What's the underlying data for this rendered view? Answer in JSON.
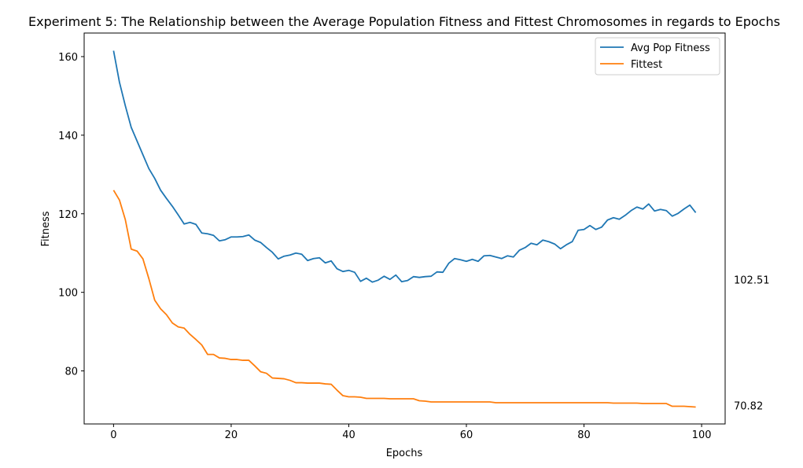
{
  "chart_data": {
    "type": "line",
    "title": "Experiment 5: The Relationship between the Average Population Fitness and Fittest Chromosomes in regards to Epochs",
    "xlabel": "Epochs",
    "ylabel": "Fitness",
    "xlim": [
      -5,
      104
    ],
    "ylim": [
      66.5,
      166
    ],
    "xticks": [
      0,
      20,
      40,
      60,
      80,
      100
    ],
    "yticks": [
      80,
      100,
      120,
      140,
      160
    ],
    "grid": false,
    "legend_position": "top-right",
    "side_annotations": [
      {
        "text": "102.51",
        "y": 103.2
      },
      {
        "text": "70.82",
        "y": 71.2
      }
    ],
    "series": [
      {
        "name": "Avg Pop Fitness",
        "color": "#1f77b4",
        "values": [
          161.5,
          153.5,
          147.5,
          142.0,
          138.5,
          135.0,
          131.5,
          129.0,
          126.0,
          123.9,
          121.9,
          119.7,
          117.4,
          117.8,
          117.3,
          115.1,
          114.9,
          114.5,
          113.1,
          113.4,
          114.1,
          114.1,
          114.2,
          114.6,
          113.3,
          112.7,
          111.4,
          110.2,
          108.5,
          109.2,
          109.5,
          110.0,
          109.7,
          108.1,
          108.6,
          108.8,
          107.5,
          108.0,
          106.0,
          105.3,
          105.6,
          105.1,
          102.8,
          103.6,
          102.6,
          103.1,
          104.1,
          103.3,
          104.4,
          102.7,
          103.0,
          104.0,
          103.8,
          104.0,
          104.1,
          105.2,
          105.1,
          107.4,
          108.6,
          108.3,
          107.9,
          108.4,
          107.9,
          109.3,
          109.4,
          109.0,
          108.6,
          109.3,
          109.0,
          110.7,
          111.4,
          112.5,
          112.1,
          113.3,
          112.9,
          112.3,
          111.1,
          112.1,
          112.9,
          115.8,
          116.0,
          117.0,
          116.0,
          116.6,
          118.4,
          119.0,
          118.6,
          119.6,
          120.8,
          121.7,
          121.2,
          122.5,
          120.7,
          121.1,
          120.8,
          119.4,
          120.1,
          121.2,
          122.2,
          120.3
        ]
      },
      {
        "name": "Fittest",
        "color": "#ff7f0e",
        "values": [
          126.0,
          123.5,
          118.5,
          111.0,
          110.5,
          108.5,
          103.5,
          98.0,
          95.8,
          94.3,
          92.2,
          91.2,
          90.9,
          89.3,
          88.0,
          86.6,
          84.2,
          84.2,
          83.3,
          83.2,
          82.9,
          82.9,
          82.7,
          82.7,
          81.3,
          79.8,
          79.4,
          78.2,
          78.1,
          78.0,
          77.6,
          77.0,
          77.0,
          76.9,
          76.9,
          76.9,
          76.7,
          76.6,
          75.1,
          73.7,
          73.4,
          73.4,
          73.3,
          73.0,
          73.0,
          73.0,
          73.0,
          72.9,
          72.9,
          72.9,
          72.9,
          72.9,
          72.4,
          72.3,
          72.1,
          72.1,
          72.1,
          72.1,
          72.1,
          72.1,
          72.1,
          72.1,
          72.1,
          72.1,
          72.1,
          71.9,
          71.9,
          71.9,
          71.9,
          71.9,
          71.9,
          71.9,
          71.9,
          71.9,
          71.9,
          71.9,
          71.9,
          71.9,
          71.9,
          71.9,
          71.9,
          71.9,
          71.9,
          71.9,
          71.9,
          71.8,
          71.8,
          71.8,
          71.8,
          71.8,
          71.7,
          71.7,
          71.7,
          71.7,
          71.7,
          71.0,
          71.0,
          71.0,
          70.9,
          70.8
        ]
      }
    ]
  }
}
